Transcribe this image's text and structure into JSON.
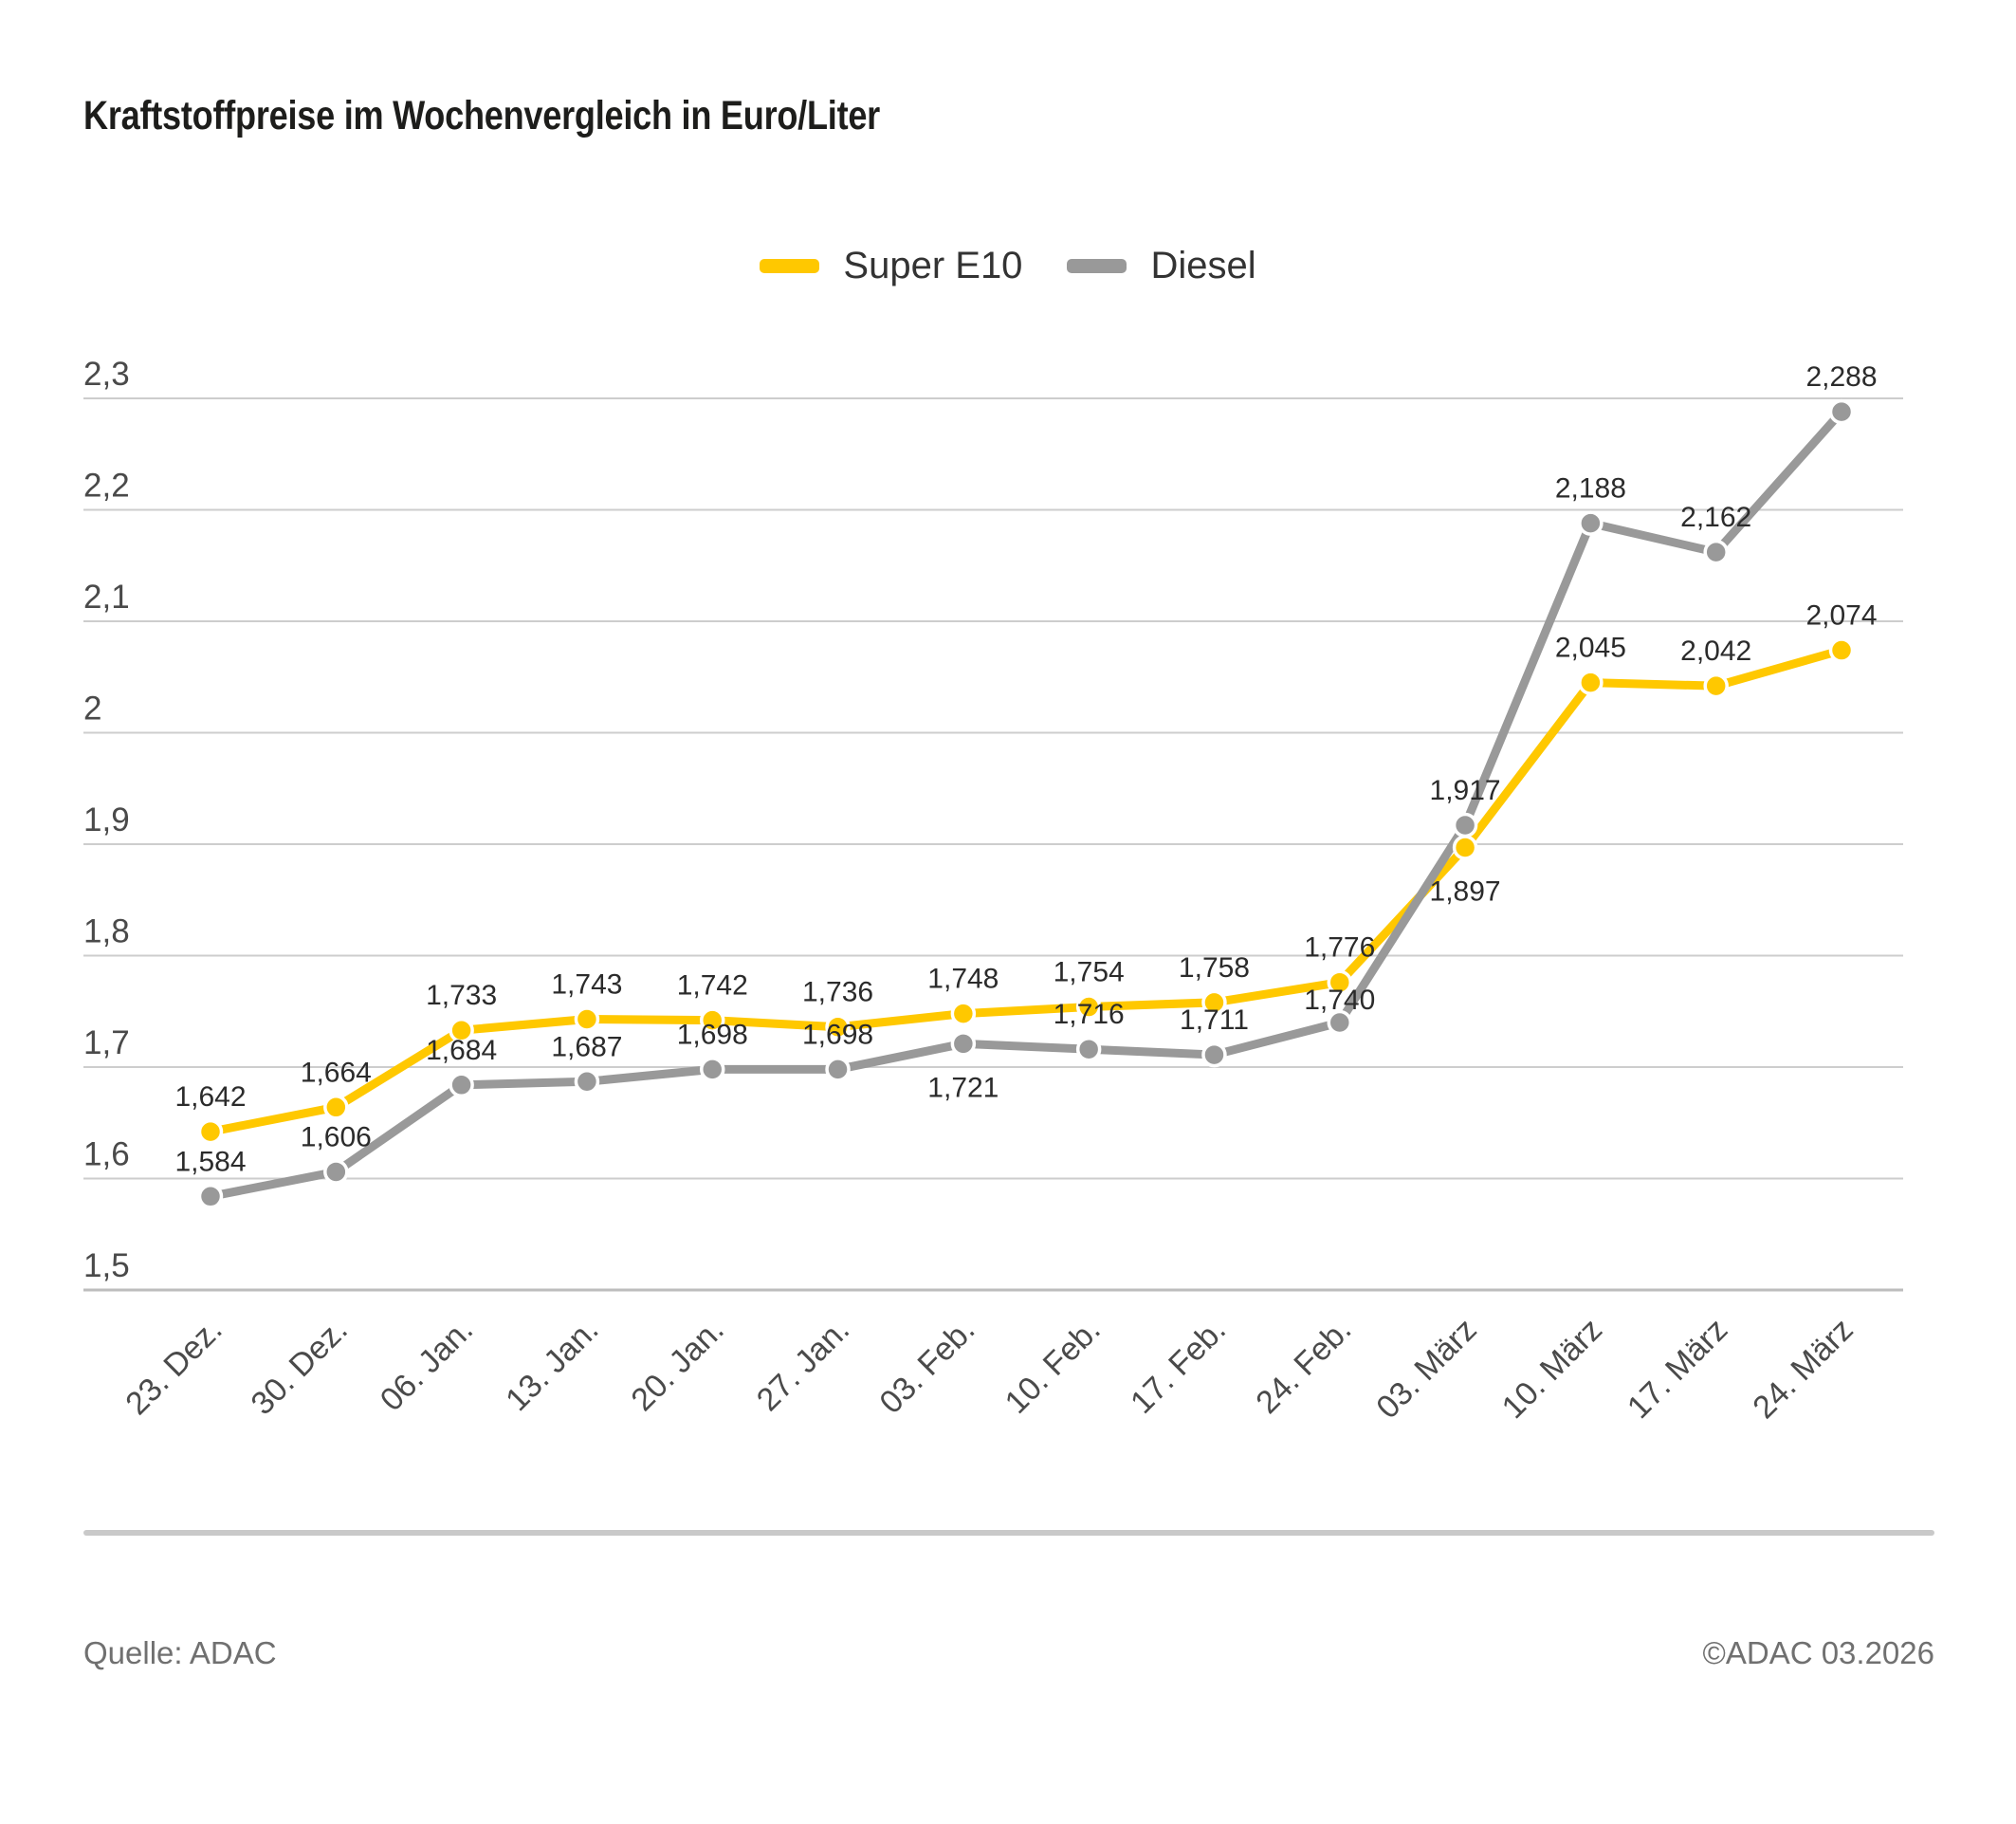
{
  "title": "Kraftstoffpreise im Wochenvergleich in Euro/Liter",
  "legend": {
    "items": [
      {
        "label": "Super E10",
        "color": "#FFC800"
      },
      {
        "label": "Diesel",
        "color": "#999999"
      }
    ]
  },
  "footer": {
    "source": "Quelle: ADAC",
    "copyright": "©ADAC 03.2026"
  },
  "colors": {
    "super_e10": "#FFC800",
    "diesel": "#999999",
    "grid": "#CDCDCD",
    "axis_line": "#BDBDBD",
    "data_label_text": "#2B2B2B",
    "tick_text": "#4A4A4A",
    "marker_ring": "#FFFFFF"
  },
  "chart_data": {
    "type": "line",
    "title": "Kraftstoffpreise im Wochenvergleich in Euro/Liter",
    "ylabel": "Euro/Liter",
    "xlabel": "",
    "grid": "horizontal",
    "legend_position": "top",
    "categories": [
      "23. Dez.",
      "30. Dez.",
      "06. Jan.",
      "13. Jan.",
      "20. Jan.",
      "27. Jan.",
      "03. Feb.",
      "10. Feb.",
      "17. Feb.",
      "24. Feb.",
      "03. März",
      "10. März",
      "17. März",
      "24. März"
    ],
    "series": [
      {
        "name": "Super E10",
        "color": "#FFC800",
        "values": [
          1.642,
          1.664,
          1.733,
          1.743,
          1.742,
          1.736,
          1.748,
          1.754,
          1.758,
          1.776,
          1.897,
          2.045,
          2.042,
          2.074
        ],
        "labels": [
          "1,642",
          "1,664",
          "1,733",
          "1,743",
          "1,742",
          "1,736",
          "1,748",
          "1,754",
          "1,758",
          "1,776",
          "1,897",
          "2,045",
          "2,042",
          "2,074"
        ]
      },
      {
        "name": "Diesel",
        "color": "#999999",
        "values": [
          1.584,
          1.606,
          1.684,
          1.687,
          1.698,
          1.698,
          1.721,
          1.716,
          1.711,
          1.74,
          1.917,
          2.188,
          2.162,
          2.288
        ],
        "labels": [
          "1,584",
          "1,606",
          "1,684",
          "1,687",
          "1,698",
          "1,698",
          "1,721",
          "1,716",
          "1,711",
          "1,740",
          "1,917",
          "2,188",
          "2,162",
          "2,288"
        ]
      }
    ],
    "y_axis": {
      "min": 1.5,
      "max": 2.3,
      "ticks": [
        2.3,
        2.2,
        2.1,
        2.0,
        1.9,
        1.8,
        1.7,
        1.6,
        1.5
      ],
      "tick_labels": [
        "2,3",
        "2,2",
        "2,1",
        "2",
        "1,9",
        "1,8",
        "1,7",
        "1,6",
        "1,5"
      ]
    },
    "label_positions": {
      "Super E10": {
        "10": "below"
      },
      "Diesel": {
        "6": "below",
        "9": "tight"
      }
    }
  }
}
